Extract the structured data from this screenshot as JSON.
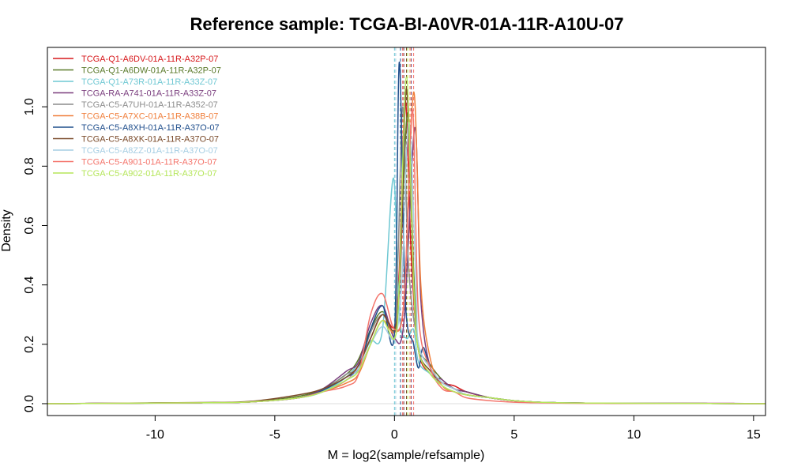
{
  "chart_data": {
    "type": "line",
    "title": "Reference sample: TCGA-BI-A0VR-01A-11R-A10U-07",
    "xlabel": "M = log2(sample/refsample)",
    "ylabel": "Density",
    "xlim": [
      -14.5,
      15.5
    ],
    "ylim": [
      -0.04,
      1.2
    ],
    "xticks": [
      "-10",
      "-5",
      "0",
      "5",
      "10",
      "15"
    ],
    "yticks": [
      "0.0",
      "0.2",
      "0.4",
      "0.6",
      "0.8",
      "1.0"
    ],
    "legend_position": "top-left",
    "grid": false,
    "series": [
      {
        "name": "TCGA-Q1-A6DV-01A-11R-A32P-07",
        "color": "#d7191c",
        "center": 0.45,
        "peak": 1.02,
        "median": 0.35,
        "x": [
          -14.5,
          -8,
          -6,
          -4,
          -3,
          -2,
          -1.5,
          -1,
          -0.5,
          0,
          0.2,
          0.45,
          0.7,
          1,
          1.5,
          2,
          2.5,
          3,
          4,
          5,
          6,
          8,
          12.8,
          14.2
        ],
        "y": [
          0,
          0.003,
          0.006,
          0.02,
          0.04,
          0.08,
          0.13,
          0.22,
          0.3,
          0.26,
          0.45,
          1.02,
          0.5,
          0.18,
          0.1,
          0.07,
          0.06,
          0.04,
          0.02,
          0.01,
          0.005,
          0.002,
          0.001,
          0.001
        ]
      },
      {
        "name": "TCGA-Q1-A6DW-01A-11R-A32P-07",
        "color": "#5a7a2a",
        "center": 0.55,
        "peak": 0.98,
        "median": 0.55,
        "x": [
          -14.5,
          -8,
          -6,
          -4,
          -3,
          -2,
          -1.5,
          -1,
          -0.5,
          0,
          0.2,
          0.55,
          0.8,
          1,
          1.5,
          2,
          2.5,
          3,
          4,
          5,
          6,
          8,
          12,
          15.5
        ],
        "y": [
          0,
          0.003,
          0.007,
          0.025,
          0.05,
          0.1,
          0.15,
          0.25,
          0.31,
          0.24,
          0.4,
          0.98,
          0.45,
          0.2,
          0.13,
          0.08,
          0.05,
          0.04,
          0.02,
          0.01,
          0.005,
          0.002,
          0.001,
          0
        ]
      },
      {
        "name": "TCGA-Q1-A73R-01A-11R-A33Z-07",
        "color": "#6fc8d3",
        "center": -0.05,
        "peak": 0.76,
        "median": 0.0,
        "x": [
          -14.5,
          -8,
          -6,
          -4,
          -3,
          -2,
          -1.5,
          -1,
          -0.5,
          -0.05,
          0.2,
          0.5,
          0.8,
          1,
          1.5,
          2,
          2.5,
          3,
          4,
          5,
          6,
          8,
          12,
          15.5
        ],
        "y": [
          0,
          0.003,
          0.006,
          0.02,
          0.04,
          0.09,
          0.14,
          0.21,
          0.25,
          0.76,
          0.3,
          0.22,
          0.25,
          0.14,
          0.1,
          0.06,
          0.04,
          0.03,
          0.02,
          0.01,
          0.005,
          0.002,
          0.001,
          0
        ]
      },
      {
        "name": "TCGA-RA-A741-01A-11R-A33Z-07",
        "color": "#7b3f7f",
        "center": 0.85,
        "peak": 0.93,
        "median": 0.7,
        "x": [
          -14.5,
          -8,
          -6,
          -4,
          -3,
          -2,
          -1.5,
          -1,
          -0.5,
          0,
          0.4,
          0.85,
          1.1,
          1.5,
          2,
          2.5,
          3,
          4,
          5,
          6,
          8,
          12,
          14.2,
          15.5
        ],
        "y": [
          0,
          0.003,
          0.006,
          0.02,
          0.05,
          0.11,
          0.14,
          0.27,
          0.33,
          0.22,
          0.28,
          0.93,
          0.35,
          0.12,
          0.08,
          0.05,
          0.04,
          0.02,
          0.01,
          0.005,
          0.002,
          0.001,
          0.001,
          0
        ]
      },
      {
        "name": "TCGA-C5-A7UH-01A-11R-A352-07",
        "color": "#8c8c8c",
        "center": 0.35,
        "peak": 1.0,
        "median": 0.4,
        "x": [
          -14.5,
          -8,
          -6,
          -4,
          -3,
          -2,
          -1.5,
          -1,
          -0.5,
          0,
          0.15,
          0.35,
          0.6,
          1,
          1.5,
          2,
          2.5,
          3,
          4,
          5,
          6,
          8,
          12,
          15.5
        ],
        "y": [
          0,
          0.003,
          0.006,
          0.02,
          0.045,
          0.1,
          0.12,
          0.24,
          0.3,
          0.25,
          0.5,
          1.0,
          0.45,
          0.2,
          0.12,
          0.07,
          0.05,
          0.03,
          0.02,
          0.01,
          0.005,
          0.002,
          0.001,
          0
        ]
      },
      {
        "name": "TCGA-C5-A7XC-01A-11R-A38B-07",
        "color": "#f07f3c",
        "center": 0.8,
        "peak": 1.05,
        "median": 0.65,
        "x": [
          -14.5,
          -8,
          -6,
          -4,
          -3,
          -2,
          -1.5,
          -1,
          -0.5,
          0,
          0.4,
          0.8,
          1.1,
          1.5,
          2,
          2.5,
          3,
          4,
          5,
          6,
          8,
          12,
          15.5
        ],
        "y": [
          0,
          0.003,
          0.006,
          0.02,
          0.04,
          0.07,
          0.1,
          0.2,
          0.28,
          0.24,
          0.35,
          1.05,
          0.4,
          0.15,
          0.06,
          0.04,
          0.03,
          0.02,
          0.01,
          0.005,
          0.002,
          0.001,
          0
        ]
      },
      {
        "name": "TCGA-C5-A8XH-01A-11R-A37O-07",
        "color": "#1f4e8c",
        "center": 0.2,
        "peak": 1.15,
        "median": 0.25,
        "x": [
          -14.5,
          -8,
          -6,
          -4,
          -3,
          -2,
          -1.5,
          -1,
          -0.5,
          0,
          0.2,
          0.45,
          0.8,
          1,
          1.2,
          1.5,
          2,
          2.5,
          3,
          4,
          5,
          6,
          8,
          12,
          15.5
        ],
        "y": [
          0,
          0.003,
          0.006,
          0.02,
          0.045,
          0.09,
          0.12,
          0.25,
          0.33,
          0.24,
          1.15,
          0.35,
          0.2,
          0.12,
          0.19,
          0.12,
          0.07,
          0.05,
          0.03,
          0.02,
          0.01,
          0.005,
          0.002,
          0.001,
          0
        ]
      },
      {
        "name": "TCGA-C5-A8XK-01A-11R-A37O-07",
        "color": "#7a4a2a",
        "center": 0.5,
        "peak": 1.06,
        "median": 0.5,
        "x": [
          -14.5,
          -8,
          -6,
          -4,
          -3,
          -2,
          -1.5,
          -1,
          -0.5,
          0,
          0.25,
          0.5,
          0.8,
          1,
          1.5,
          2,
          2.5,
          3,
          4,
          5,
          6,
          8,
          12,
          15.5
        ],
        "y": [
          0,
          0.004,
          0.008,
          0.03,
          0.05,
          0.09,
          0.13,
          0.22,
          0.3,
          0.25,
          0.45,
          1.06,
          0.4,
          0.18,
          0.11,
          0.07,
          0.05,
          0.03,
          0.02,
          0.01,
          0.005,
          0.002,
          0.001,
          0
        ]
      },
      {
        "name": "TCGA-C5-A8ZZ-01A-11R-A37O-07",
        "color": "#a6cee3",
        "center": 0.6,
        "peak": 0.95,
        "median": 0.05,
        "x": [
          -14.5,
          -8,
          -6,
          -4,
          -3,
          -2,
          -1.5,
          -1,
          -0.5,
          0,
          0.3,
          0.6,
          0.9,
          1,
          1.5,
          2,
          2.5,
          3,
          4,
          5,
          6,
          8,
          12,
          15.5
        ],
        "y": [
          0,
          0.003,
          0.006,
          0.02,
          0.04,
          0.08,
          0.12,
          0.2,
          0.26,
          0.22,
          0.4,
          0.95,
          0.4,
          0.2,
          0.12,
          0.07,
          0.05,
          0.03,
          0.02,
          0.01,
          0.005,
          0.002,
          0.001,
          0
        ]
      },
      {
        "name": "TCGA-C5-A901-01A-11R-A37O-07",
        "color": "#f4756c",
        "center": 0.75,
        "peak": 0.99,
        "median": 0.8,
        "x": [
          -14.5,
          -8,
          -6,
          -4,
          -3,
          -2,
          -1.5,
          -1,
          -0.5,
          0,
          0.4,
          0.75,
          1,
          1.5,
          2,
          2.5,
          3,
          4,
          5,
          6,
          8,
          12,
          15.5
        ],
        "y": [
          0,
          0.003,
          0.006,
          0.02,
          0.04,
          0.06,
          0.1,
          0.3,
          0.37,
          0.25,
          0.35,
          0.99,
          0.3,
          0.12,
          0.05,
          0.04,
          0.02,
          0.01,
          0.005,
          0.003,
          0.001,
          0.001,
          0
        ]
      },
      {
        "name": "TCGA-C5-A902-01A-11R-A37O-07",
        "color": "#b5e65a",
        "center": 0.5,
        "peak": 1.1,
        "median": 0.55,
        "x": [
          -14.5,
          -8,
          -6,
          -4,
          -3,
          -2,
          -1.5,
          -1,
          -0.5,
          0,
          0.2,
          0.5,
          0.8,
          1,
          1.5,
          2,
          2.5,
          3,
          4,
          5,
          6,
          8,
          12,
          15.5
        ],
        "y": [
          0,
          0.003,
          0.006,
          0.02,
          0.04,
          0.08,
          0.11,
          0.2,
          0.28,
          0.22,
          0.4,
          1.1,
          0.4,
          0.18,
          0.1,
          0.06,
          0.04,
          0.03,
          0.02,
          0.01,
          0.005,
          0.002,
          0.001,
          0
        ]
      }
    ]
  }
}
